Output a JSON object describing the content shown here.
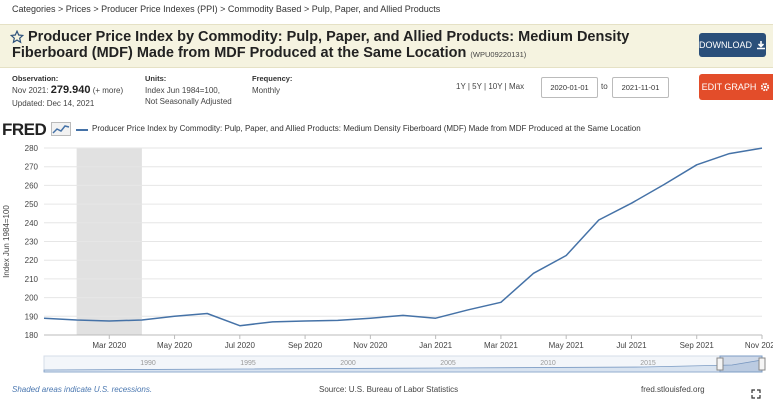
{
  "breadcrumb": [
    "Categories",
    "Prices",
    "Producer Price Indexes (PPI)",
    "Commodity Based",
    "Pulp, Paper, and Allied Products"
  ],
  "header": {
    "title": "Producer Price Index by Commodity: Pulp, Paper, and Allied Products: Medium Density Fiberboard (MDF) Made from MDF Produced at the Same Location",
    "series_id": "(WPU09220131)",
    "download_label": "DOWNLOAD",
    "edit_label": "EDIT GRAPH"
  },
  "meta": {
    "observation_label": "Observation:",
    "observation_period": "Nov 2021:",
    "observation_value": "279.940",
    "observation_more": "(+ more)",
    "updated": "Updated: Dec 14, 2021",
    "units_label": "Units:",
    "units_line1": "Index Jun 1984=100,",
    "units_line2": "Not Seasonally Adjusted",
    "frequency_label": "Frequency:",
    "frequency_value": "Monthly"
  },
  "range": {
    "options": [
      "1Y",
      "5Y",
      "10Y",
      "Max"
    ],
    "start": "2020-01-01",
    "to_label": "to",
    "end": "2021-11-01"
  },
  "logo": "FRED",
  "footer": {
    "recession_note": "Shaded areas indicate U.S. recessions.",
    "source": "Source: U.S. Bureau of Labor Statistics",
    "site": "fred.stlouisfed.org"
  },
  "colors": {
    "series": "#4572a7",
    "recession": "#e1e1e1",
    "download": "#2a4f7a",
    "edit": "#e34d2a"
  },
  "chart_data": {
    "type": "line",
    "ylabel": "Index Jun 1984=100",
    "ylim": [
      180,
      280
    ],
    "yticks": [
      180,
      190,
      200,
      210,
      220,
      230,
      240,
      250,
      260,
      270,
      280
    ],
    "grid": true,
    "legend": "top",
    "xlim": [
      "2020-01",
      "2021-11"
    ],
    "xtick_labels": [
      "Mar 2020",
      "May 2020",
      "Jul 2020",
      "Sep 2020",
      "Nov 2020",
      "Jan 2021",
      "Mar 2021",
      "May 2021",
      "Jul 2021",
      "Sep 2021",
      "Nov 2021"
    ],
    "xtick_months": [
      "2020-03",
      "2020-05",
      "2020-07",
      "2020-09",
      "2020-11",
      "2021-01",
      "2021-03",
      "2021-05",
      "2021-07",
      "2021-09",
      "2021-11"
    ],
    "recession": {
      "start": "2020-02",
      "end": "2020-04"
    },
    "series": [
      {
        "name": "Producer Price Index by Commodity: Pulp, Paper, and Allied Products: Medium Density Fiberboard (MDF) Made from MDF Produced at the Same Location",
        "x": [
          "2020-01",
          "2020-02",
          "2020-03",
          "2020-04",
          "2020-05",
          "2020-06",
          "2020-07",
          "2020-08",
          "2020-09",
          "2020-10",
          "2020-11",
          "2020-12",
          "2021-01",
          "2021-02",
          "2021-03",
          "2021-04",
          "2021-05",
          "2021-06",
          "2021-07",
          "2021-08",
          "2021-09",
          "2021-10",
          "2021-11"
        ],
        "values": [
          189.0,
          188.0,
          187.5,
          188.0,
          190.0,
          191.5,
          185.0,
          187.0,
          187.5,
          187.8,
          189.0,
          190.5,
          189.0,
          193.5,
          197.5,
          213.0,
          222.5,
          241.5,
          250.5,
          260.5,
          271.0,
          277.0,
          279.94
        ]
      }
    ],
    "navigator": {
      "tick_labels": [
        "1990",
        "1995",
        "2000",
        "2005",
        "2010",
        "2015"
      ]
    }
  }
}
